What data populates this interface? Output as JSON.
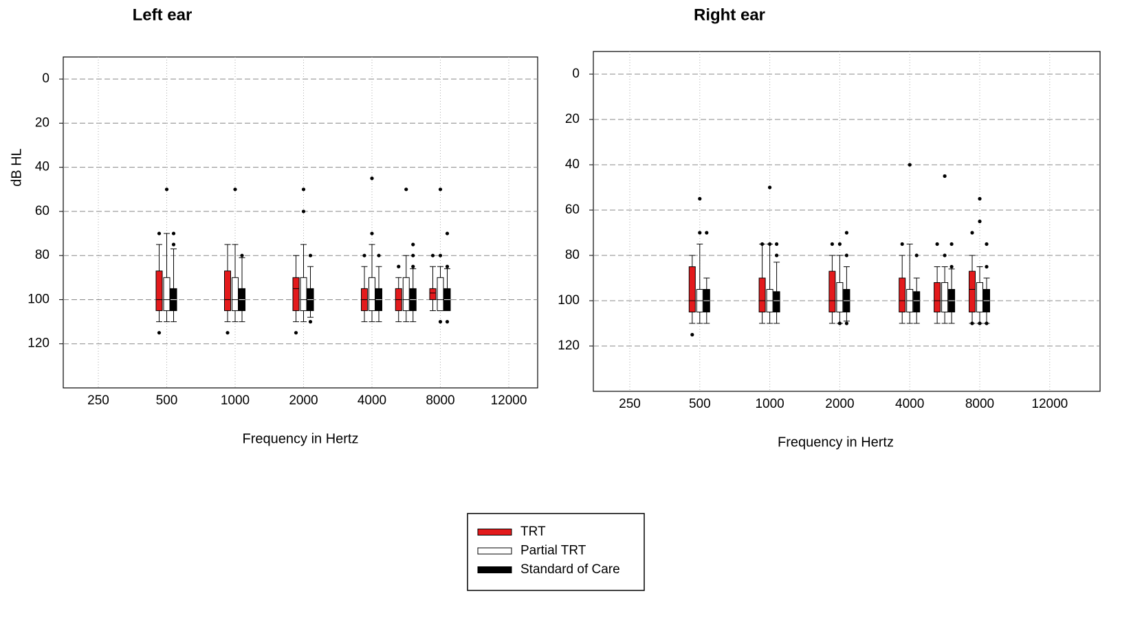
{
  "chart_data": [
    {
      "type": "box",
      "title": "Left ear",
      "xlabel": "Frequency in Hertz",
      "ylabel": "dB HL",
      "categories": [
        "250",
        "500",
        "1000",
        "2000",
        "4000",
        null,
        "8000",
        "12000"
      ],
      "ylim": [
        -10,
        140
      ],
      "yticks": [
        0,
        20,
        40,
        60,
        80,
        100,
        120
      ],
      "inverted": true,
      "grid": true,
      "series": [
        {
          "name": "TRT",
          "color": "#e31a1c",
          "values": [
            null,
            {
              "min": 75,
              "q1": 87,
              "median": 100,
              "q3": 105,
              "max": 110,
              "outliers": [
                70,
                115
              ]
            },
            {
              "min": 75,
              "q1": 87,
              "median": 100,
              "q3": 105,
              "max": 110,
              "outliers": [
                115
              ]
            },
            {
              "min": 80,
              "q1": 90,
              "median": 95,
              "q3": 105,
              "max": 110,
              "outliers": [
                115
              ]
            },
            {
              "min": 85,
              "q1": 95,
              "median": 100,
              "q3": 105,
              "max": 110,
              "outliers": [
                80
              ]
            },
            {
              "min": 90,
              "q1": 95,
              "median": 100,
              "q3": 105,
              "max": 110,
              "outliers": [
                85
              ]
            },
            {
              "min": 85,
              "q1": 95,
              "median": 97,
              "q3": 100,
              "max": 105,
              "outliers": [
                80
              ]
            },
            null
          ]
        },
        {
          "name": "Partial TRT",
          "color": "#ffffff",
          "values": [
            null,
            {
              "min": 70,
              "q1": 90,
              "median": 100,
              "q3": 105,
              "max": 110,
              "outliers": [
                50
              ]
            },
            {
              "min": 75,
              "q1": 90,
              "median": 100,
              "q3": 105,
              "max": 110,
              "outliers": [
                50
              ]
            },
            {
              "min": 75,
              "q1": 90,
              "median": 100,
              "q3": 105,
              "max": 110,
              "outliers": [
                50,
                60
              ]
            },
            {
              "min": 75,
              "q1": 90,
              "median": 100,
              "q3": 105,
              "max": 110,
              "outliers": [
                45,
                70
              ]
            },
            {
              "min": 80,
              "q1": 90,
              "median": 100,
              "q3": 105,
              "max": 110,
              "outliers": [
                50
              ]
            },
            {
              "min": 85,
              "q1": 90,
              "median": 100,
              "q3": 105,
              "max": 105,
              "outliers": [
                50,
                80,
                110
              ]
            },
            null
          ]
        },
        {
          "name": "Standard of Care",
          "color": "#000000",
          "values": [
            null,
            {
              "min": 77,
              "q1": 95,
              "median": 100,
              "q3": 105,
              "max": 110,
              "outliers": [
                70,
                75
              ]
            },
            {
              "min": 81,
              "q1": 95,
              "median": 100,
              "q3": 105,
              "max": 110,
              "outliers": [
                80
              ]
            },
            {
              "min": 85,
              "q1": 95,
              "median": 100,
              "q3": 105,
              "max": 108,
              "outliers": [
                80,
                110
              ]
            },
            {
              "min": 85,
              "q1": 95,
              "median": 100,
              "q3": 105,
              "max": 110,
              "outliers": [
                80
              ]
            },
            {
              "min": 86,
              "q1": 95,
              "median": 100,
              "q3": 105,
              "max": 110,
              "outliers": [
                75,
                80,
                85
              ]
            },
            {
              "min": 86,
              "q1": 95,
              "median": 100,
              "q3": 105,
              "max": 105,
              "outliers": [
                70,
                85,
                110
              ]
            },
            null
          ]
        }
      ]
    },
    {
      "type": "box",
      "title": "Right ear",
      "xlabel": "Frequency in Hertz",
      "categories": [
        "250",
        "500",
        "1000",
        "2000",
        "4000",
        null,
        "8000",
        "12000"
      ],
      "ylim": [
        -10,
        140
      ],
      "yticks": [
        0,
        20,
        40,
        60,
        80,
        100,
        120
      ],
      "inverted": true,
      "grid": true,
      "series": [
        {
          "color": "#e31a1c",
          "values": [
            null,
            {
              "min": 80,
              "q1": 85,
              "median": 100,
              "q3": 105,
              "max": 110,
              "outliers": [
                115
              ]
            },
            {
              "min": 75,
              "q1": 90,
              "median": 100,
              "q3": 105,
              "max": 110,
              "outliers": [
                75
              ]
            },
            {
              "min": 80,
              "q1": 87,
              "median": 100,
              "q3": 105,
              "max": 110,
              "outliers": [
                75
              ]
            },
            {
              "min": 80,
              "q1": 90,
              "median": 100,
              "q3": 105,
              "max": 110,
              "outliers": [
                75
              ]
            },
            {
              "min": 85,
              "q1": 92,
              "median": 100,
              "q3": 105,
              "max": 110,
              "outliers": [
                75
              ]
            },
            {
              "min": 80,
              "q1": 87,
              "median": 95,
              "q3": 105,
              "max": 110,
              "outliers": [
                70,
                110
              ]
            },
            null
          ]
        },
        {
          "color": "#ffffff",
          "values": [
            null,
            {
              "min": 75,
              "q1": 95,
              "median": 100,
              "q3": 105,
              "max": 110,
              "outliers": [
                55,
                70
              ]
            },
            {
              "min": 75,
              "q1": 95,
              "median": 100,
              "q3": 105,
              "max": 110,
              "outliers": [
                50,
                75
              ]
            },
            {
              "min": 80,
              "q1": 92,
              "median": 100,
              "q3": 105,
              "max": 110,
              "outliers": [
                75,
                110
              ]
            },
            {
              "min": 75,
              "q1": 95,
              "median": 100,
              "q3": 105,
              "max": 110,
              "outliers": [
                40
              ]
            },
            {
              "min": 85,
              "q1": 92,
              "median": 100,
              "q3": 105,
              "max": 110,
              "outliers": [
                45,
                80
              ]
            },
            {
              "min": 85,
              "q1": 92,
              "median": 100,
              "q3": 105,
              "max": 110,
              "outliers": [
                55,
                65,
                110
              ]
            },
            null
          ]
        },
        {
          "color": "#000000",
          "values": [
            null,
            {
              "min": 90,
              "q1": 95,
              "median": 100,
              "q3": 105,
              "max": 110,
              "outliers": [
                70
              ]
            },
            {
              "min": 83,
              "q1": 96,
              "median": 100,
              "q3": 105,
              "max": 110,
              "outliers": [
                75,
                80
              ]
            },
            {
              "min": 85,
              "q1": 95,
              "median": 100,
              "q3": 105,
              "max": 109,
              "outliers": [
                70,
                80,
                110
              ]
            },
            {
              "min": 90,
              "q1": 96,
              "median": 100,
              "q3": 105,
              "max": 110,
              "outliers": [
                80
              ]
            },
            {
              "min": 86,
              "q1": 95,
              "median": 100,
              "q3": 105,
              "max": 110,
              "outliers": [
                75,
                85
              ]
            },
            {
              "min": 90,
              "q1": 95,
              "median": 100,
              "q3": 105,
              "max": 110,
              "outliers": [
                75,
                85,
                110
              ]
            },
            null
          ]
        }
      ]
    }
  ]
}
